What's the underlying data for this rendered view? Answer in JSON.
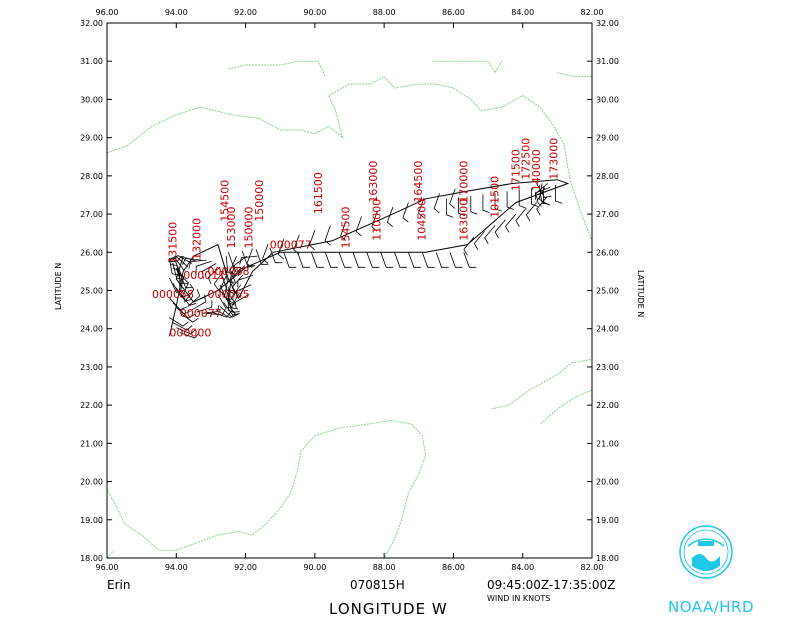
{
  "chart_data": {
    "type": "scatter",
    "title": "",
    "xlabel": "LONGITUDE   W",
    "ylabel": "LATITUDE   N",
    "ylabel_right": "LATITUDE   N",
    "xlim": [
      96,
      82
    ],
    "ylim": [
      18,
      32
    ],
    "x_ticks": [
      "96.00",
      "94.00",
      "92.00",
      "90.00",
      "88.00",
      "86.00",
      "84.00",
      "82.00"
    ],
    "y_ticks": [
      "18.00",
      "19.00",
      "20.00",
      "21.00",
      "22.00",
      "23.00",
      "24.00",
      "25.00",
      "26.00",
      "27.00",
      "28.00",
      "29.00",
      "30.00",
      "31.00",
      "32.00"
    ],
    "storm_name": "Erin",
    "date_label": "070815H",
    "time_range": "09:45:00Z-17:35:00Z",
    "units_label": "WIND IN KNOTS",
    "grid": false,
    "coastline_color": "#8fcf8f",
    "track_color": "#000000",
    "label_color": "#cc0000",
    "time_labels": [
      {
        "text": "163000",
        "lon": 85.6,
        "lat": 26.3
      },
      {
        "text": "170000",
        "lon": 85.6,
        "lat": 27.3
      },
      {
        "text": "171500",
        "lon": 84.1,
        "lat": 27.6
      },
      {
        "text": "101500",
        "lon": 84.7,
        "lat": 26.9
      },
      {
        "text": "172500",
        "lon": 83.8,
        "lat": 27.9
      },
      {
        "text": "173000",
        "lon": 83.0,
        "lat": 27.9
      },
      {
        "text": "140000",
        "lon": 83.5,
        "lat": 27.6
      },
      {
        "text": "104500",
        "lon": 86.8,
        "lat": 26.3
      },
      {
        "text": "164500",
        "lon": 86.9,
        "lat": 27.3
      },
      {
        "text": "163000",
        "lon": 88.2,
        "lat": 27.3
      },
      {
        "text": "110000",
        "lon": 88.1,
        "lat": 26.3
      },
      {
        "text": "161500",
        "lon": 89.8,
        "lat": 27.0
      },
      {
        "text": "154500",
        "lon": 89.0,
        "lat": 26.1
      },
      {
        "text": "150000",
        "lon": 91.5,
        "lat": 26.8
      },
      {
        "text": "154500",
        "lon": 92.5,
        "lat": 26.8
      },
      {
        "text": "153000",
        "lon": 92.3,
        "lat": 26.1
      },
      {
        "text": "150000",
        "lon": 91.8,
        "lat": 26.1
      },
      {
        "text": "000077",
        "lon": 91.3,
        "lat": 26.1
      },
      {
        "text": "131500",
        "lon": 94.0,
        "lat": 25.7
      },
      {
        "text": "132000",
        "lon": 93.3,
        "lat": 25.8
      },
      {
        "text": "000011",
        "lon": 93.8,
        "lat": 25.3
      },
      {
        "text": "000088",
        "lon": 93.1,
        "lat": 25.4
      },
      {
        "text": "000058",
        "lon": 94.7,
        "lat": 24.8
      },
      {
        "text": "000055",
        "lon": 93.1,
        "lat": 24.8
      },
      {
        "text": "000077",
        "lon": 93.9,
        "lat": 24.3
      },
      {
        "text": "000000",
        "lon": 94.2,
        "lat": 23.8
      }
    ]
  }
}
